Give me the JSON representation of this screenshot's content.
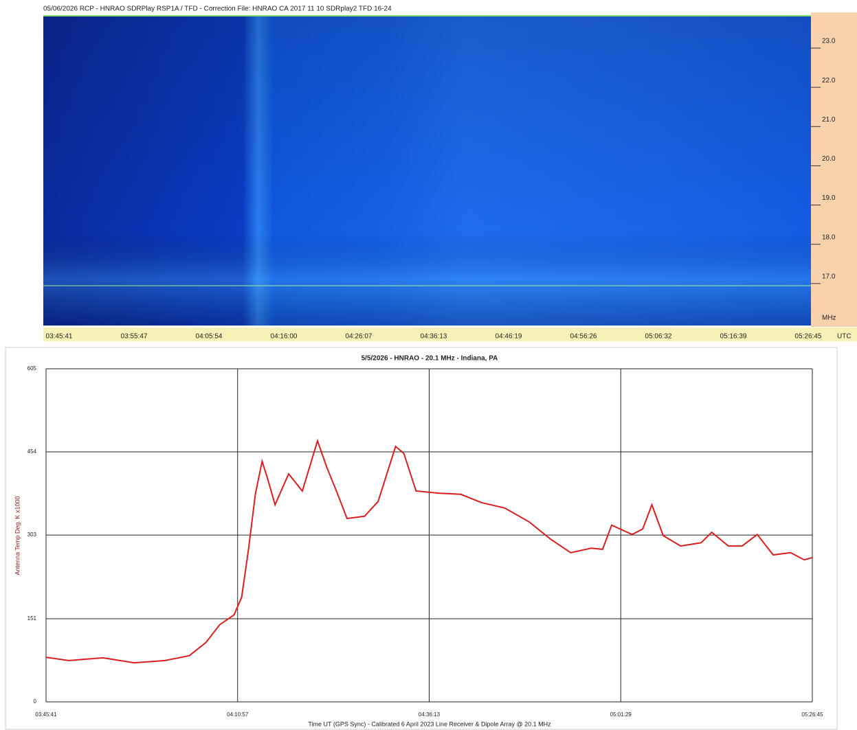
{
  "chart_data": [
    {
      "type": "spectrogram",
      "title": "05/06/2026 RCP - HNRAO SDRPlay RSP1A / TFD - Correction File: HNRAO CA 2017 11 10 SDRplay2 TFD 16-24",
      "ylabel": "MHz",
      "xlabel": "UTC",
      "ylim": [
        15.93,
        23.84
      ],
      "yticks": [
        {
          "value": 17,
          "label": "17.0"
        },
        {
          "value": 18,
          "label": "18.0"
        },
        {
          "value": 19,
          "label": "19.0"
        },
        {
          "value": 20,
          "label": "20.0"
        },
        {
          "value": 21,
          "label": "21.0"
        },
        {
          "value": 22,
          "label": "22.0"
        },
        {
          "value": 23,
          "label": "23.0"
        }
      ],
      "xticks": [
        "03:45:41",
        "03:55:47",
        "04:05:54",
        "04:16:00",
        "04:26:07",
        "04:36:13",
        "04:46:19",
        "04:56:26",
        "05:06:32",
        "05:16:39",
        "05:26:45"
      ]
    },
    {
      "type": "line",
      "title": "5/5/2026 - HNRAO - 20.1 MHz - Indiana, PA",
      "ylabel": "Antenna Temp Deg. K x1000",
      "xlabel": "Time UT (GPS Sync) - Calibrated 6 April 2023 Line Receiver & Dipole Array @ 20.1 MHz",
      "xlim": [
        "03:45:41",
        "05:26:45"
      ],
      "xticks": [
        "03:45:41",
        "04:10:57",
        "04:36:13",
        "05:01:29",
        "05:26:45"
      ],
      "ylim": [
        0,
        605
      ],
      "yticks": [
        0,
        151,
        303,
        454,
        605
      ],
      "grid": true,
      "series": [
        {
          "color": "#d81e1e",
          "x": [
            "03:45:41",
            "03:48:41",
            "03:53:11",
            "03:57:17",
            "04:01:23",
            "04:04:35",
            "04:06:47",
            "04:08:35",
            "04:10:29",
            "04:11:29",
            "04:12:23",
            "04:13:17",
            "04:14:11",
            "04:14:59",
            "04:15:53",
            "04:17:41",
            "04:19:29",
            "04:21:29",
            "04:22:41",
            "04:23:59",
            "04:25:23",
            "04:27:41",
            "04:29:29",
            "04:31:47",
            "04:32:53",
            "04:34:29",
            "04:37:35",
            "04:40:23",
            "04:43:05",
            "04:46:11",
            "04:49:23",
            "04:52:11",
            "04:54:53",
            "04:57:35",
            "04:59:05",
            "05:00:17",
            "05:02:59",
            "05:04:23",
            "05:05:35",
            "05:07:05",
            "05:09:23",
            "05:12:05",
            "05:13:29",
            "05:15:41",
            "05:17:29",
            "05:19:29",
            "05:21:35",
            "05:23:53",
            "05:25:41",
            "05:26:45"
          ],
          "values": [
            81,
            75,
            80,
            71,
            75,
            84,
            108,
            140,
            158,
            190,
            277,
            377,
            437,
            402,
            358,
            414,
            383,
            474,
            427,
            383,
            333,
            337,
            364,
            464,
            451,
            383,
            379,
            377,
            362,
            352,
            327,
            296,
            271,
            279,
            277,
            321,
            304,
            314,
            358,
            302,
            283,
            289,
            308,
            283,
            283,
            304,
            267,
            271,
            258,
            262
          ]
        }
      ]
    }
  ]
}
